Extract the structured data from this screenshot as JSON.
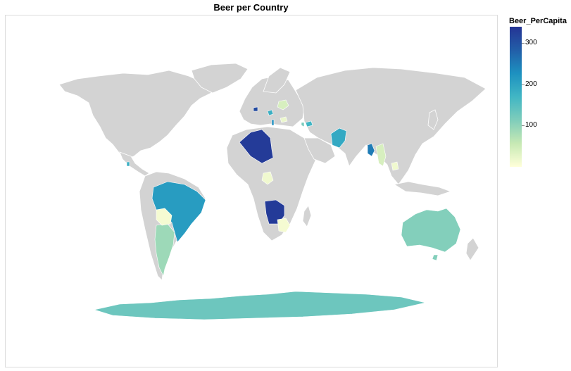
{
  "chart_data": {
    "type": "choropleth",
    "title": "Beer per Country",
    "legend": {
      "title": "Beer_PerCapita",
      "placement": "right",
      "colors": [
        "#ffffd9",
        "#c7e9b4",
        "#7fcdbb",
        "#41b6c4",
        "#1d91c0",
        "#225ea8",
        "#253494"
      ],
      "domain": [
        0,
        340
      ],
      "ticks": [
        100,
        200,
        300
      ]
    },
    "no_data_color": "#d3d3d3",
    "regions": [
      {
        "name": "Algeria",
        "value": 330
      },
      {
        "name": "Angola",
        "value": 330
      },
      {
        "name": "Brazil",
        "value": 210
      },
      {
        "name": "Afghanistan",
        "value": 190
      },
      {
        "name": "Bangladesh",
        "value": 250
      },
      {
        "name": "Argentina",
        "value": 90
      },
      {
        "name": "Australia",
        "value": 110
      },
      {
        "name": "Antarctica",
        "value": 130
      },
      {
        "name": "Bolivia",
        "value": 10
      },
      {
        "name": "Botswana",
        "value": 10
      },
      {
        "name": "Burkina Faso",
        "value": 15
      },
      {
        "name": "Belarus",
        "value": 40
      },
      {
        "name": "Burma",
        "value": 40
      },
      {
        "name": "Cambodia",
        "value": 15
      },
      {
        "name": "Bosnia",
        "value": 180
      },
      {
        "name": "Azerbaijan",
        "value": 170
      },
      {
        "name": "Armenia",
        "value": 120
      },
      {
        "name": "Belgium",
        "value": 310
      },
      {
        "name": "Bulgaria",
        "value": 20
      },
      {
        "name": "Albania",
        "value": 230
      },
      {
        "name": "Belize",
        "value": 180
      }
    ]
  }
}
